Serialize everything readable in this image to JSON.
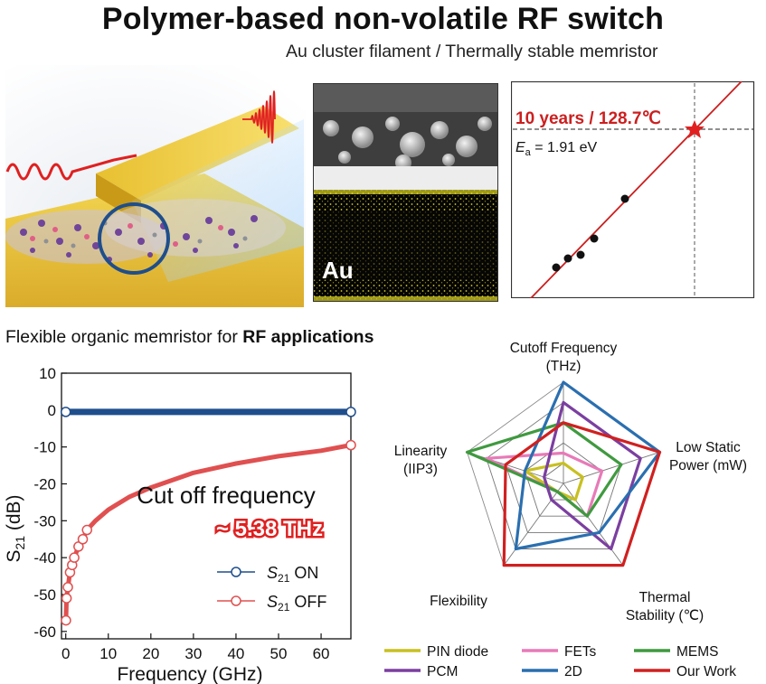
{
  "title": "Polymer-based non-volatile RF switch",
  "subtitle": "Au cluster filament / Thermally stable memristor",
  "section2": {
    "prefix": "Flexible organic memristor for ",
    "bold": "RF applications"
  },
  "tem": {
    "label": "Au"
  },
  "arrhenius": {
    "annotation": "10 years / 128.7℃",
    "ea_symbol": "E",
    "ea_sub": "a",
    "ea_value": " = 1.91 eV",
    "colors": {
      "fit_line": "#cc1f1f",
      "star": "#e02020",
      "points": "#111111"
    }
  },
  "chart_data": [
    {
      "type": "line",
      "xlabel": "Frequency (GHz)",
      "ylabel_main": "S",
      "ylabel_sub": "21",
      "ylabel_unit": " (dB)",
      "xlim": [
        -1,
        67
      ],
      "ylim": [
        -62,
        10
      ],
      "x_ticks": [
        0,
        10,
        20,
        30,
        40,
        50,
        60
      ],
      "y_ticks": [
        10,
        0,
        -10,
        -20,
        -30,
        -40,
        -50,
        -60
      ],
      "annotation_1": "Cut off frequency",
      "annotation_2": "~ 5.38 THz",
      "series": [
        {
          "name": "S21 ON",
          "legend_main": "S",
          "legend_sub": "21",
          "legend_suffix": " ON",
          "color": "#1f4e8c",
          "x": [
            0,
            67
          ],
          "y": [
            -0.5,
            -0.5
          ]
        },
        {
          "name": "S21 OFF",
          "legend_main": "S",
          "legend_sub": "21",
          "legend_suffix": " OFF",
          "color": "#e05050",
          "x": [
            0.05,
            0.2,
            0.5,
            1,
            1.5,
            2,
            3,
            4,
            5,
            7,
            10,
            15,
            20,
            30,
            40,
            50,
            60,
            67
          ],
          "y": [
            -57,
            -51,
            -48,
            -44,
            -42,
            -40,
            -37,
            -35,
            -32.5,
            -30,
            -27,
            -23.5,
            -21,
            -17,
            -14.5,
            -12.5,
            -11,
            -9.5
          ]
        }
      ]
    },
    {
      "type": "radar",
      "axes": [
        {
          "line1": "Cutoff Frequency",
          "line2": "(THz)"
        },
        {
          "line1": "Low Static",
          "line2": "Power (mW)"
        },
        {
          "line1": "Thermal",
          "line2": "Stability (℃)"
        },
        {
          "line1": "Flexibility",
          "line2": ""
        },
        {
          "line1": "Linearity",
          "line2": "(IIP3)"
        }
      ],
      "rings": 5,
      "series": [
        {
          "name": "PIN diode",
          "color": "#c8c020",
          "values": [
            0.2,
            0.2,
            0.2,
            0.1,
            0.4
          ]
        },
        {
          "name": "FETs",
          "color": "#e87ab8",
          "values": [
            0.3,
            0.4,
            0.4,
            0.1,
            0.8
          ]
        },
        {
          "name": "MEMS",
          "color": "#3f9a3f",
          "values": [
            0.6,
            0.6,
            0.4,
            0.1,
            1.0
          ]
        },
        {
          "name": "PCM",
          "color": "#7b3fa0",
          "values": [
            0.8,
            0.8,
            0.8,
            0.2,
            0.2
          ]
        },
        {
          "name": "2D",
          "color": "#2a6fb0",
          "values": [
            1.0,
            1.0,
            0.6,
            0.8,
            0.4
          ]
        },
        {
          "name": "Our Work",
          "color": "#d02020",
          "values": [
            0.6,
            1.0,
            1.0,
            1.0,
            0.6
          ]
        }
      ]
    }
  ]
}
